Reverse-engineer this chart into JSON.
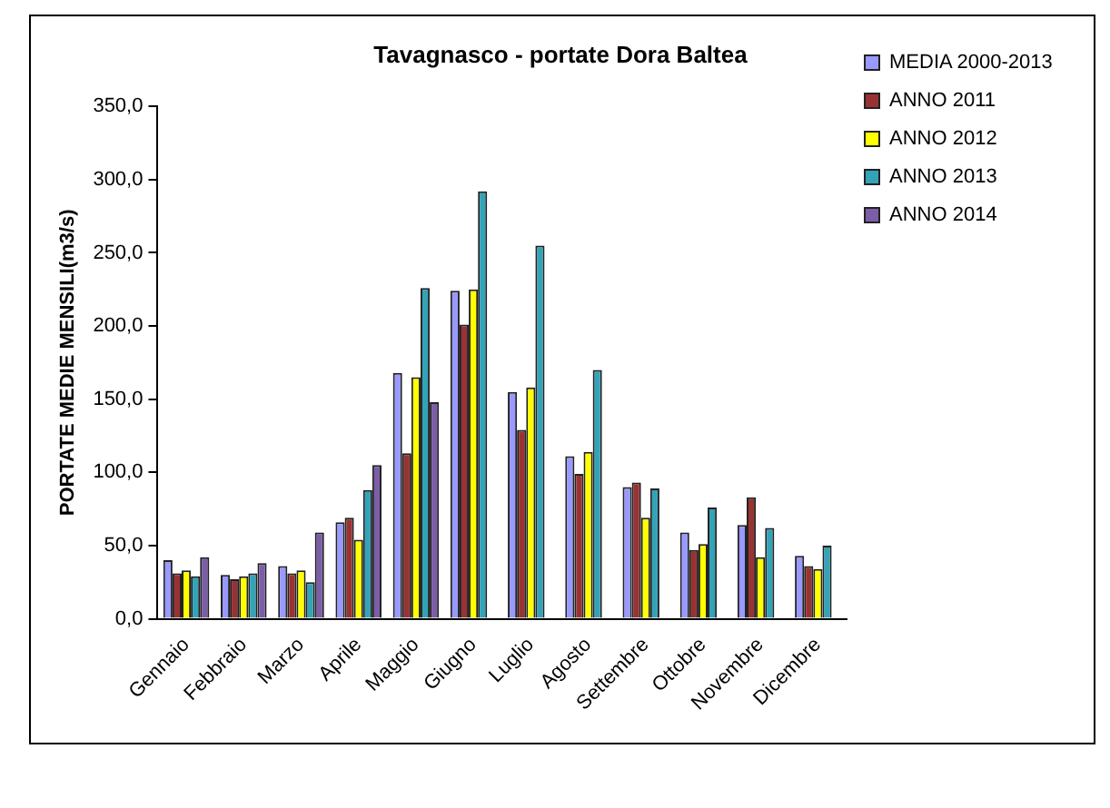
{
  "chart_data": {
    "type": "bar",
    "title": "Tavagnasco - portate Dora Baltea",
    "ylabel": "PORTATE MEDIE MENSILI(m3/s)",
    "categories": [
      "Gennaio",
      "Febbraio",
      "Marzo",
      "Aprile",
      "Maggio",
      "Giugno",
      "Luglio",
      "Agosto",
      "Settembre",
      "Ottobre",
      "Novembre",
      "Dicembre"
    ],
    "series": [
      {
        "name": "MEDIA 2000-2013",
        "color": "#9999ff",
        "values": [
          40,
          30,
          36,
          66,
          168,
          224,
          155,
          111,
          90,
          59,
          64,
          43
        ]
      },
      {
        "name": "ANNO 2011",
        "color": "#993333",
        "values": [
          31,
          27,
          31,
          69,
          113,
          201,
          129,
          99,
          93,
          47,
          83,
          36
        ]
      },
      {
        "name": "ANNO 2012",
        "color": "#ffff00",
        "values": [
          33,
          29,
          33,
          54,
          165,
          225,
          158,
          114,
          69,
          51,
          42,
          34
        ]
      },
      {
        "name": "ANNO 2013",
        "color": "#33a3b8",
        "values": [
          29,
          31,
          25,
          88,
          226,
          292,
          255,
          170,
          89,
          76,
          62,
          50
        ]
      },
      {
        "name": "ANNO 2014",
        "color": "#7b5ea7",
        "values": [
          42,
          38,
          59,
          105,
          148,
          null,
          null,
          null,
          null,
          null,
          null,
          null
        ]
      }
    ],
    "ylim": [
      0,
      350
    ],
    "yticks": [
      {
        "value": 0,
        "label": "0,0"
      },
      {
        "value": 50,
        "label": "50,0"
      },
      {
        "value": 100,
        "label": "100,0"
      },
      {
        "value": 150,
        "label": "150,0"
      },
      {
        "value": 200,
        "label": "200,0"
      },
      {
        "value": 250,
        "label": "250,0"
      },
      {
        "value": 300,
        "label": "300,0"
      },
      {
        "value": 350,
        "label": "350,0"
      }
    ],
    "grid": false,
    "legend": "top right"
  }
}
